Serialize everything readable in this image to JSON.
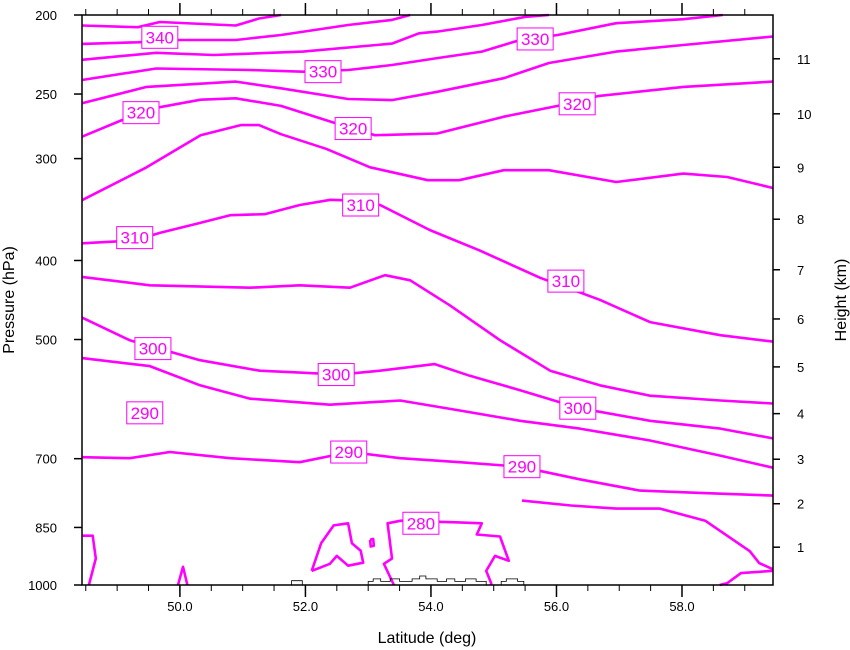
{
  "chart_data": {
    "type": "line",
    "subtype": "contour",
    "title": "",
    "xlabel": "Latitude (deg)",
    "ylabel": "Pressure (hPa)",
    "y2label": "Height (km)",
    "xlim": [
      48.44,
      59.45
    ],
    "ylim": [
      1000,
      200
    ],
    "yscale": "log",
    "x_ticks": [
      "50.0",
      "52.0",
      "54.0",
      "56.0",
      "58.0"
    ],
    "x_tick_values": [
      50,
      52,
      54,
      56,
      58
    ],
    "x_minor_step": 0.5,
    "y_ticks": [
      "200",
      "250",
      "300",
      "400",
      "500",
      "700",
      "850",
      "1000"
    ],
    "y_tick_values": [
      200,
      250,
      300,
      400,
      500,
      700,
      850,
      1000
    ],
    "y2_ticks": [
      "1",
      "2",
      "3",
      "4",
      "5",
      "6",
      "7",
      "8",
      "9",
      "10",
      "11"
    ],
    "y2_tick_values_km": [
      1,
      2,
      3,
      4,
      5,
      6,
      7,
      8,
      9,
      10,
      11
    ],
    "colors": {
      "contour": "#ff00ff",
      "terrain": "#000000",
      "axis": "#000000"
    },
    "contours": [
      {
        "level": 340,
        "points": [
          [
            48.44,
            206
          ],
          [
            49.33,
            207
          ],
          [
            49.68,
            204
          ],
          [
            50.89,
            206
          ],
          [
            51.26,
            202
          ],
          [
            51.61,
            200
          ]
        ]
      },
      {
        "level": 340,
        "points": [
          [
            48.44,
            217
          ],
          [
            49.33,
            216
          ],
          [
            49.97,
            214.6
          ],
          [
            50.89,
            214.6
          ],
          [
            51.61,
            211.6
          ],
          [
            52.68,
            205.7
          ],
          [
            53.38,
            202.8
          ],
          [
            53.67,
            200
          ]
        ]
      },
      {
        "level": 330,
        "points": [
          [
            48.44,
            227
          ],
          [
            49.62,
            222.5
          ],
          [
            50.54,
            223.9
          ],
          [
            51.96,
            221.8
          ],
          [
            53.38,
            216.8
          ],
          [
            53.81,
            210.6
          ],
          [
            54.1,
            209.6
          ],
          [
            54.81,
            205.7
          ],
          [
            55.51,
            201
          ],
          [
            55.88,
            200
          ]
        ]
      },
      {
        "level": 330,
        "points": [
          [
            48.44,
            240.3
          ],
          [
            49.62,
            232.6
          ],
          [
            51.12,
            233.6
          ],
          [
            51.96,
            234.7
          ],
          [
            52.68,
            233.6
          ],
          [
            53.38,
            230.3
          ],
          [
            54.1,
            225.9
          ],
          [
            54.81,
            221.8
          ],
          [
            55.42,
            214.6
          ],
          [
            56.02,
            211.6
          ],
          [
            56.95,
            204.7
          ],
          [
            58.02,
            202.4
          ],
          [
            58.65,
            200
          ]
        ]
      },
      {
        "level": 330,
        "points": [
          [
            48.44,
            256.6
          ],
          [
            49.47,
            245
          ],
          [
            50.89,
            241.4
          ],
          [
            51.61,
            246
          ],
          [
            52.68,
            253.5
          ],
          [
            53.38,
            254.3
          ],
          [
            54.1,
            248.4
          ],
          [
            55.16,
            239.1
          ],
          [
            55.88,
            229
          ],
          [
            56.95,
            221.8
          ],
          [
            58.02,
            217.7
          ],
          [
            59.45,
            212.5
          ]
        ]
      },
      {
        "level": 320,
        "points": [
          [
            48.44,
            282
          ],
          [
            49.08,
            269
          ],
          [
            49.68,
            259.5
          ],
          [
            50.33,
            254
          ],
          [
            50.89,
            253
          ],
          [
            51.61,
            258.5
          ],
          [
            52.45,
            271
          ],
          [
            53.11,
            280.8
          ],
          [
            54.1,
            279.5
          ],
          [
            55.16,
            266.5
          ],
          [
            56.02,
            258.5
          ],
          [
            56.66,
            251.5
          ],
          [
            58.02,
            245
          ],
          [
            59.45,
            241.4
          ]
        ]
      },
      {
        "level": 320,
        "points": [
          [
            48.44,
            337.4
          ],
          [
            49.47,
            307.5
          ],
          [
            50.33,
            280.8
          ],
          [
            50.97,
            272.9
          ],
          [
            51.26,
            272.9
          ],
          [
            51.61,
            280
          ],
          [
            52.33,
            291.8
          ],
          [
            53.03,
            307.5
          ],
          [
            53.95,
            318.9
          ],
          [
            54.45,
            318.9
          ],
          [
            55.16,
            310
          ],
          [
            55.88,
            310
          ],
          [
            56.95,
            320.5
          ],
          [
            58.02,
            313
          ],
          [
            58.72,
            316
          ],
          [
            59.45,
            326
          ]
        ]
      },
      {
        "level": 310,
        "points": [
          [
            48.44,
            381
          ],
          [
            49.28,
            378
          ],
          [
            49.68,
            370
          ],
          [
            50.3,
            360
          ],
          [
            50.8,
            352
          ],
          [
            51.35,
            351
          ],
          [
            51.91,
            342
          ],
          [
            52.4,
            337
          ],
          [
            52.88,
            338
          ],
          [
            53.19,
            342
          ],
          [
            53.98,
            367
          ],
          [
            54.78,
            389
          ],
          [
            55.74,
            420
          ],
          [
            56.69,
            447
          ],
          [
            57.49,
            476
          ],
          [
            58.61,
            494
          ],
          [
            59.45,
            503
          ]
        ]
      },
      {
        "level": 310,
        "points": [
          [
            48.44,
            419
          ],
          [
            49.52,
            429
          ],
          [
            51.12,
            432
          ],
          [
            51.91,
            429
          ],
          [
            52.71,
            432
          ],
          [
            53.27,
            417
          ],
          [
            53.67,
            423
          ],
          [
            54.3,
            454
          ],
          [
            55.1,
            501
          ],
          [
            55.9,
            546
          ],
          [
            56.69,
            569
          ],
          [
            57.49,
            586
          ],
          [
            58.61,
            594
          ],
          [
            59.45,
            599
          ]
        ]
      },
      {
        "level": 300,
        "points": [
          [
            48.44,
            470
          ],
          [
            49.2,
            501
          ],
          [
            50.32,
            530
          ],
          [
            51.27,
            546
          ],
          [
            51.91,
            549
          ],
          [
            52.55,
            552
          ],
          [
            53.19,
            546
          ],
          [
            54.06,
            536
          ],
          [
            54.62,
            554
          ],
          [
            55.42,
            577
          ],
          [
            56.37,
            607
          ],
          [
            57.49,
            629
          ],
          [
            58.61,
            643
          ],
          [
            59.45,
            661
          ]
        ]
      },
      {
        "level": 290,
        "points": [
          [
            48.44,
            527
          ],
          [
            49.52,
            539
          ],
          [
            50.32,
            569
          ],
          [
            51.12,
            591
          ],
          [
            52.39,
            601
          ],
          [
            53.51,
            594
          ],
          [
            54.46,
            611
          ],
          [
            55.42,
            629
          ],
          [
            56.37,
            643
          ],
          [
            57.49,
            665
          ],
          [
            58.61,
            694
          ],
          [
            59.45,
            718
          ]
        ]
      },
      {
        "level": 290,
        "points": [
          [
            48.44,
            697
          ],
          [
            49.2,
            699
          ],
          [
            49.84,
            687
          ],
          [
            50.8,
            699
          ],
          [
            51.91,
            707
          ],
          [
            52.71,
            687
          ],
          [
            53.51,
            699
          ],
          [
            54.46,
            707
          ],
          [
            55.42,
            716
          ],
          [
            56.37,
            742
          ],
          [
            57.33,
            766
          ],
          [
            58.29,
            771
          ],
          [
            59.45,
            777
          ]
        ]
      },
      {
        "level": 280,
        "points": [
          [
            55.45,
            788
          ],
          [
            56.23,
            799
          ],
          [
            56.95,
            806
          ],
          [
            57.65,
            806
          ],
          [
            58.37,
            834
          ],
          [
            59.08,
            909
          ],
          [
            59.23,
            940
          ],
          [
            59.43,
            955
          ],
          [
            59.43,
            961
          ],
          [
            58.94,
            967
          ],
          [
            58.72,
            995
          ],
          [
            58.6,
            1000
          ]
        ]
      },
      {
        "level": 280,
        "points": [
          [
            52.1,
            961
          ],
          [
            52.25,
            889
          ],
          [
            52.45,
            845
          ],
          [
            52.68,
            840
          ],
          [
            52.74,
            889
          ],
          [
            52.88,
            908
          ],
          [
            52.92,
            939
          ],
          [
            52.68,
            947
          ],
          [
            52.5,
            921
          ],
          [
            52.39,
            942
          ],
          [
            52.1,
            961
          ]
        ]
      },
      {
        "level": 280,
        "points": [
          [
            53.41,
            1000
          ],
          [
            53.25,
            942
          ],
          [
            53.38,
            928
          ],
          [
            53.31,
            840
          ],
          [
            53.52,
            834
          ],
          [
            54.45,
            838
          ],
          [
            54.81,
            840
          ],
          [
            54.73,
            867
          ],
          [
            55.1,
            872
          ],
          [
            55.24,
            934
          ],
          [
            55.02,
            921
          ],
          [
            54.88,
            961
          ],
          [
            54.96,
            995
          ],
          [
            54.96,
            1000
          ]
        ]
      },
      {
        "level": 280,
        "points": [
          [
            53.03,
            880
          ],
          [
            53.08,
            878
          ],
          [
            53.09,
            895
          ],
          [
            53.04,
            897
          ],
          [
            53.03,
            880
          ]
        ]
      },
      {
        "level": 280,
        "points": [
          [
            48.44,
            870
          ],
          [
            48.61,
            870
          ],
          [
            48.66,
            928
          ],
          [
            48.55,
            1000
          ]
        ]
      },
      {
        "level": 280,
        "points": [
          [
            49.97,
            1000
          ],
          [
            50.05,
            950
          ],
          [
            50.12,
            1000
          ]
        ]
      }
    ],
    "contour_labels": [
      {
        "text": "340",
        "lat": 49.68,
        "p": 213
      },
      {
        "text": "330",
        "lat": 52.28,
        "p": 234.7
      },
      {
        "text": "330",
        "lat": 55.66,
        "p": 214
      },
      {
        "text": "320",
        "lat": 49.38,
        "p": 263.5
      },
      {
        "text": "320",
        "lat": 52.76,
        "p": 275.6
      },
      {
        "text": "320",
        "lat": 56.33,
        "p": 257
      },
      {
        "text": "310",
        "lat": 49.28,
        "p": 375
      },
      {
        "text": "310",
        "lat": 52.88,
        "p": 342
      },
      {
        "text": "310",
        "lat": 56.15,
        "p": 424
      },
      {
        "text": "300",
        "lat": 49.57,
        "p": 513
      },
      {
        "text": "300",
        "lat": 52.49,
        "p": 552
      },
      {
        "text": "300",
        "lat": 56.34,
        "p": 607
      },
      {
        "text": "290",
        "lat": 49.44,
        "p": 615
      },
      {
        "text": "290",
        "lat": 52.69,
        "p": 687
      },
      {
        "text": "290",
        "lat": 55.45,
        "p": 716
      },
      {
        "text": "280",
        "lat": 53.84,
        "p": 840
      }
    ],
    "terrain": [
      [
        51.78,
        1000
      ],
      [
        51.78,
        988
      ],
      [
        51.95,
        988
      ],
      [
        51.95,
        1000
      ],
      [
        53.0,
        1000
      ],
      [
        53.0,
        990
      ],
      [
        53.08,
        990
      ],
      [
        53.08,
        983
      ],
      [
        53.2,
        983
      ],
      [
        53.2,
        990
      ],
      [
        53.35,
        990
      ],
      [
        53.35,
        983
      ],
      [
        53.5,
        983
      ],
      [
        53.5,
        990
      ],
      [
        53.7,
        990
      ],
      [
        53.7,
        983
      ],
      [
        53.82,
        983
      ],
      [
        53.82,
        975
      ],
      [
        53.92,
        975
      ],
      [
        53.92,
        983
      ],
      [
        54.1,
        983
      ],
      [
        54.1,
        990
      ],
      [
        54.25,
        990
      ],
      [
        54.25,
        983
      ],
      [
        54.38,
        983
      ],
      [
        54.38,
        990
      ],
      [
        54.55,
        990
      ],
      [
        54.55,
        983
      ],
      [
        54.72,
        983
      ],
      [
        54.72,
        990
      ],
      [
        54.88,
        990
      ],
      [
        54.88,
        1000
      ],
      [
        55.12,
        1000
      ],
      [
        55.12,
        990
      ],
      [
        55.2,
        990
      ],
      [
        55.2,
        983
      ],
      [
        55.38,
        983
      ],
      [
        55.38,
        990
      ],
      [
        55.48,
        990
      ],
      [
        55.48,
        1000
      ]
    ]
  }
}
